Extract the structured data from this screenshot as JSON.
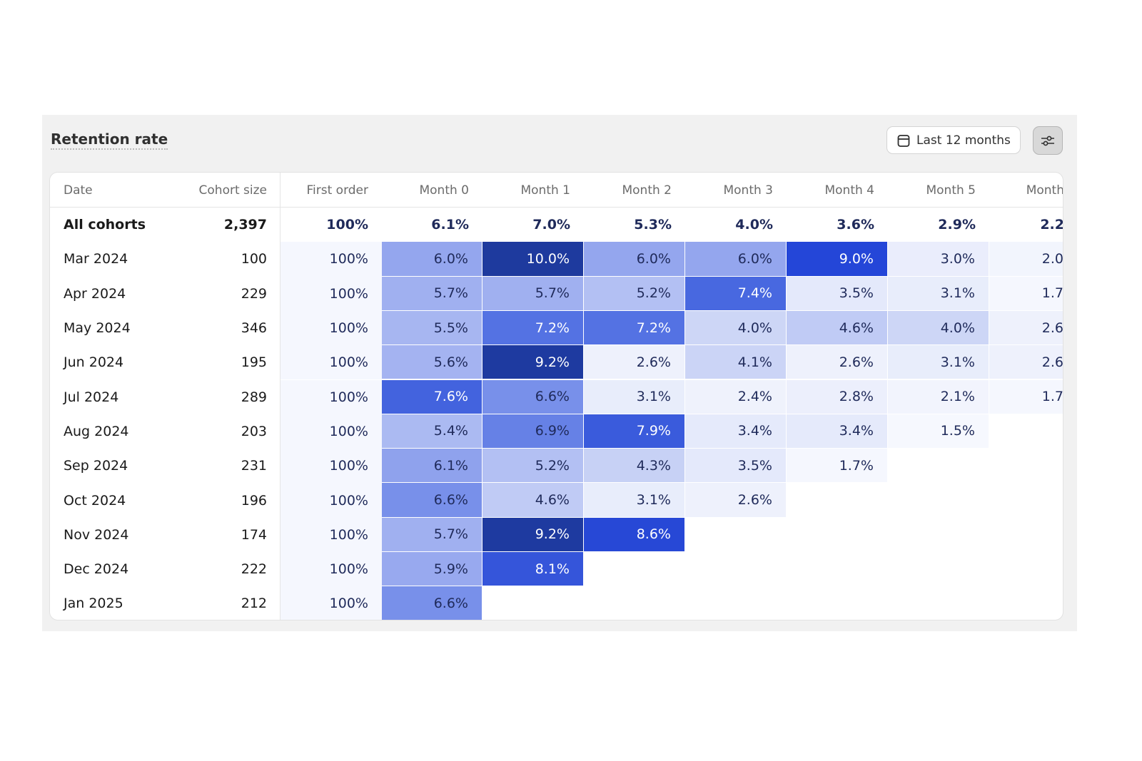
{
  "header": {
    "title": "Retention rate",
    "date_button": "Last 12 months"
  },
  "table": {
    "columns": [
      "Date",
      "Cohort size",
      "First order",
      "Month 0",
      "Month 1",
      "Month 2",
      "Month 3",
      "Month 4",
      "Month 5",
      "Month"
    ],
    "summary": [
      "All cohorts",
      "2,397",
      "100%",
      "6.1%",
      "7.0%",
      "5.3%",
      "4.0%",
      "3.6%",
      "2.9%",
      "2.2"
    ],
    "rows": [
      [
        "Mar 2024",
        "100",
        "100%",
        "6.0%",
        "10.0%",
        "6.0%",
        "6.0%",
        "9.0%",
        "3.0%",
        "2.0"
      ],
      [
        "Apr 2024",
        "229",
        "100%",
        "5.7%",
        "5.7%",
        "5.2%",
        "7.4%",
        "3.5%",
        "3.1%",
        "1.7"
      ],
      [
        "May 2024",
        "346",
        "100%",
        "5.5%",
        "7.2%",
        "7.2%",
        "4.0%",
        "4.6%",
        "4.0%",
        "2.6"
      ],
      [
        "Jun 2024",
        "195",
        "100%",
        "5.6%",
        "9.2%",
        "2.6%",
        "4.1%",
        "2.6%",
        "3.1%",
        "2.6"
      ],
      [
        "Jul 2024",
        "289",
        "100%",
        "7.6%",
        "6.6%",
        "3.1%",
        "2.4%",
        "2.8%",
        "2.1%",
        "1.7"
      ],
      [
        "Aug 2024",
        "203",
        "100%",
        "5.4%",
        "6.9%",
        "7.9%",
        "3.4%",
        "3.4%",
        "1.5%"
      ],
      [
        "Sep 2024",
        "231",
        "100%",
        "6.1%",
        "5.2%",
        "4.3%",
        "3.5%",
        "1.7%"
      ],
      [
        "Oct 2024",
        "196",
        "100%",
        "6.6%",
        "4.6%",
        "3.1%",
        "2.6%"
      ],
      [
        "Nov 2024",
        "174",
        "100%",
        "5.7%",
        "9.2%",
        "8.6%"
      ],
      [
        "Dec 2024",
        "222",
        "100%",
        "5.9%",
        "8.1%"
      ],
      [
        "Jan 2025",
        "212",
        "100%",
        "6.6%"
      ]
    ]
  }
}
